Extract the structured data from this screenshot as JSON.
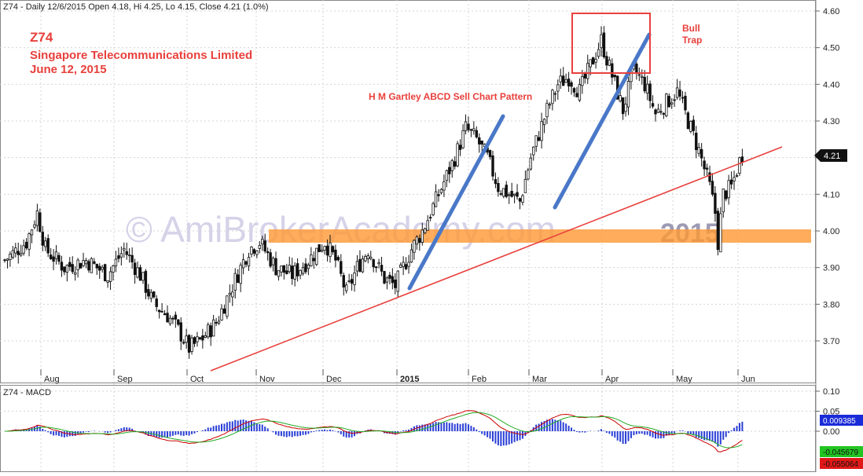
{
  "header": {
    "price_title": "Z74 - Daily 12/6/2015 Open 4.18, Hi 4.25, Lo 4.15, Close 4.21 (1.0%)",
    "macd_title": "Z74 - MACD"
  },
  "annotations": {
    "ticker": "Z74",
    "company": "Singapore Telecommunications Limited",
    "date": "June 12, 2015",
    "pattern": "H M Gartley ABCD Sell Chart Pattern",
    "bull": "Bull",
    "trap": "Trap",
    "watermark": "© AmiBrokerAcademy.com",
    "year_mark": "2015"
  },
  "colors": {
    "annotation": "#e8403c",
    "pattern_line": "#4a78c8",
    "trendline": "#e8403c",
    "support_zone": "#ff9933",
    "macd_hist": "#2a3fd6",
    "macd_line": "#cc0000",
    "signal_line": "#22aa22",
    "grid": "#c8c8c8"
  },
  "chart_data": [
    {
      "type": "candlestick",
      "title": "Z74 - Daily 12/6/2015 Open 4.18, Hi 4.25, Lo 4.15, Close 4.21 (1.0%)",
      "y_ticks": [
        "4.60",
        "4.50",
        "4.40",
        "4.30",
        "4.20",
        "4.10",
        "4.00",
        "3.90",
        "3.80",
        "3.70"
      ],
      "ylim": [
        3.6,
        4.63
      ],
      "x_ticks": [
        "Aug",
        "Sep",
        "Oct",
        "Nov",
        "Dec",
        "2015",
        "Feb",
        "Mar",
        "Apr",
        "May",
        "Jun"
      ],
      "last_close_label": "4.21",
      "anchors": [
        [
          0,
          3.92
        ],
        [
          8,
          3.97
        ],
        [
          12,
          4.05
        ],
        [
          15,
          3.95
        ],
        [
          22,
          3.9
        ],
        [
          30,
          3.92
        ],
        [
          38,
          3.88
        ],
        [
          44,
          3.95
        ],
        [
          50,
          3.88
        ],
        [
          55,
          3.8
        ],
        [
          60,
          3.77
        ],
        [
          64,
          3.73
        ],
        [
          68,
          3.68
        ],
        [
          72,
          3.7
        ],
        [
          78,
          3.75
        ],
        [
          84,
          3.85
        ],
        [
          90,
          3.95
        ],
        [
          94,
          3.97
        ],
        [
          100,
          3.9
        ],
        [
          106,
          3.88
        ],
        [
          112,
          3.92
        ],
        [
          118,
          3.97
        ],
        [
          122,
          3.92
        ],
        [
          126,
          3.83
        ],
        [
          130,
          3.9
        ],
        [
          134,
          3.95
        ],
        [
          140,
          3.87
        ],
        [
          144,
          3.85
        ],
        [
          150,
          3.95
        ],
        [
          154,
          4.0
        ],
        [
          160,
          4.1
        ],
        [
          166,
          4.2
        ],
        [
          170,
          4.28
        ],
        [
          174,
          4.25
        ],
        [
          178,
          4.2
        ],
        [
          182,
          4.12
        ],
        [
          186,
          4.1
        ],
        [
          190,
          4.08
        ],
        [
          194,
          4.2
        ],
        [
          200,
          4.33
        ],
        [
          204,
          4.4
        ],
        [
          208,
          4.42
        ],
        [
          212,
          4.38
        ],
        [
          216,
          4.45
        ],
        [
          220,
          4.52
        ],
        [
          222,
          4.47
        ],
        [
          225,
          4.4
        ],
        [
          228,
          4.33
        ],
        [
          232,
          4.44
        ],
        [
          236,
          4.4
        ],
        [
          240,
          4.32
        ],
        [
          244,
          4.35
        ],
        [
          248,
          4.38
        ],
        [
          252,
          4.3
        ],
        [
          256,
          4.22
        ],
        [
          258,
          4.17
        ],
        [
          260,
          4.12
        ],
        [
          262,
          4.05
        ],
        [
          263,
          3.97
        ],
        [
          265,
          4.1
        ],
        [
          268,
          4.12
        ],
        [
          271,
          4.19
        ],
        [
          272,
          4.21
        ]
      ],
      "trendline": {
        "from": [
          3.62
        ],
        "to": [
          4.23
        ]
      },
      "support_zone": [
        3.965,
        4.005
      ],
      "bull_trap_box": [
        4.43,
        4.59
      ]
    },
    {
      "type": "macd",
      "title": "Z74 - MACD",
      "y_ticks": [
        "0.10",
        "0.05",
        "0.00"
      ],
      "ylim": [
        -0.07,
        0.1
      ],
      "value_labels": [
        "0.009385",
        "-0.045679",
        "-0.055064"
      ]
    }
  ]
}
